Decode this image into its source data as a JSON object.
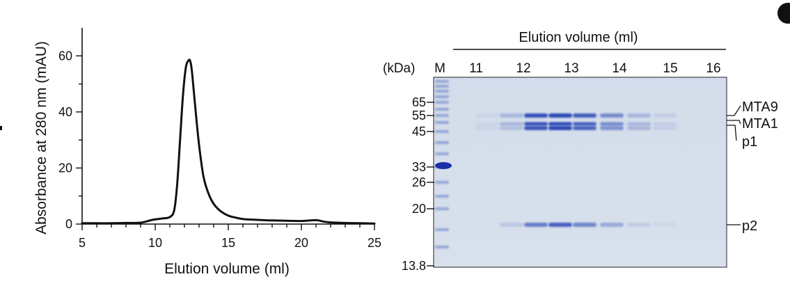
{
  "chart_data": [
    {
      "type": "line",
      "xlabel": "Elution volume (ml)",
      "ylabel": "Absorbance at 280 nm (mAU)",
      "xlim": [
        5,
        25
      ],
      "ylim": [
        0,
        70
      ],
      "xticks": [
        "5",
        "10",
        "15",
        "20",
        "25"
      ],
      "yticks": [
        "0",
        "20",
        "40",
        "60"
      ],
      "grid": false,
      "series": [
        {
          "x": [
            5,
            6,
            7,
            8,
            9,
            9.8,
            10.5,
            11,
            11.3,
            11.5,
            11.7,
            11.9,
            12.1,
            12.3,
            12.4,
            12.5,
            12.7,
            12.9,
            13.1,
            13.3,
            13.5,
            13.8,
            14.1,
            14.5,
            15,
            15.5,
            16,
            17,
            18,
            19,
            20,
            21,
            21.5,
            22,
            23,
            24,
            25
          ],
          "y": [
            0.3,
            0.3,
            0.3,
            0.4,
            0.5,
            1.5,
            2.0,
            2.5,
            5.0,
            14.0,
            30.0,
            46.0,
            56.0,
            58.5,
            58.0,
            55.0,
            44.0,
            33.0,
            24.0,
            17.0,
            13.0,
            9.0,
            6.5,
            4.5,
            3.0,
            2.3,
            1.8,
            1.5,
            1.3,
            1.2,
            1.1,
            1.4,
            0.9,
            0.6,
            0.4,
            0.3,
            0.2
          ]
        }
      ]
    },
    {
      "type": "gel",
      "title": "Elution volume (ml)",
      "unit_label": "(kDa)",
      "ladder_label": "M",
      "lane_labels": [
        "11",
        "12",
        "13",
        "14",
        "15",
        "16"
      ],
      "markers_kda": [
        "65",
        "55",
        "45",
        "33",
        "26",
        "20",
        "13.8"
      ],
      "band_labels": [
        "MTA9",
        "MTA1",
        "p1",
        "p2"
      ],
      "band_intensity": {
        "MTA9": [
          0.05,
          0.25,
          0.95,
          1.0,
          0.85,
          0.55,
          0.25,
          0.1,
          0.0
        ],
        "MTA1": [
          0.05,
          0.25,
          0.95,
          1.0,
          0.85,
          0.55,
          0.25,
          0.1,
          0.0
        ],
        "p1": [
          0.05,
          0.2,
          0.9,
          1.0,
          0.8,
          0.5,
          0.25,
          0.1,
          0.0
        ],
        "p2": [
          0.0,
          0.15,
          0.65,
          0.85,
          0.6,
          0.35,
          0.12,
          0.05,
          0.0
        ]
      }
    }
  ]
}
